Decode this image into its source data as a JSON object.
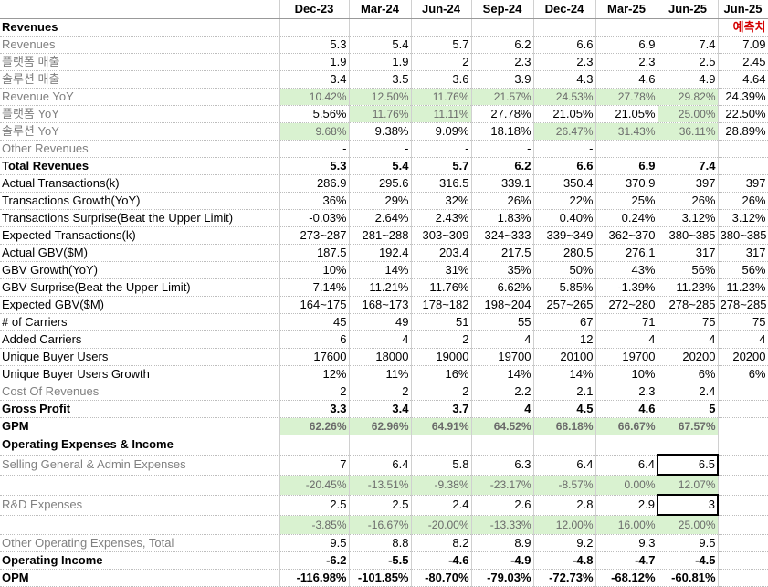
{
  "columns": [
    "Dec-23",
    "Mar-24",
    "Jun-24",
    "Sep-24",
    "Dec-24",
    "Mar-25",
    "Jun-25",
    "Jun-25"
  ],
  "forecast_label": "예측치",
  "rows": [
    {
      "label": "Revenues",
      "cells": [
        "",
        "",
        "",
        "",
        "",
        "",
        "",
        ""
      ]
    },
    {
      "label": "Revenues",
      "cells": [
        "5.3",
        "5.4",
        "5.7",
        "6.2",
        "6.6",
        "6.9",
        "7.4",
        "7.09"
      ]
    },
    {
      "label": "플랫폼 매출",
      "cells": [
        "1.9",
        "1.9",
        "2",
        "2.3",
        "2.3",
        "2.3",
        "2.5",
        "2.45"
      ]
    },
    {
      "label": "솔루션 매출",
      "cells": [
        "3.4",
        "3.5",
        "3.6",
        "3.9",
        "4.3",
        "4.6",
        "4.9",
        "4.64"
      ]
    },
    {
      "label": "Revenue YoY",
      "cells": [
        "10.42%",
        "12.50%",
        "11.76%",
        "21.57%",
        "24.53%",
        "27.78%",
        "29.82%",
        "24.39%"
      ]
    },
    {
      "label": "플랫폼 YoY",
      "cells": [
        "5.56%",
        "11.76%",
        "11.11%",
        "27.78%",
        "21.05%",
        "21.05%",
        "25.00%",
        "22.50%"
      ]
    },
    {
      "label": "솔루션 YoY",
      "cells": [
        "9.68%",
        "9.38%",
        "9.09%",
        "18.18%",
        "26.47%",
        "31.43%",
        "36.11%",
        "28.89%"
      ]
    },
    {
      "label": "Other Revenues",
      "cells": [
        "-",
        "-",
        "-",
        "-",
        "-",
        "",
        "",
        ""
      ]
    },
    {
      "label": "Total Revenues",
      "cells": [
        "5.3",
        "5.4",
        "5.7",
        "6.2",
        "6.6",
        "6.9",
        "7.4",
        ""
      ]
    },
    {
      "label": "Actual Transactions(k)",
      "cells": [
        "286.9",
        "295.6",
        "316.5",
        "339.1",
        "350.4",
        "370.9",
        "397",
        "397"
      ]
    },
    {
      "label": "Transactions Growth(YoY)",
      "cells": [
        "36%",
        "29%",
        "32%",
        "26%",
        "22%",
        "25%",
        "26%",
        "26%"
      ]
    },
    {
      "label": "Transactions Surprise(Beat the Upper Limit)",
      "cells": [
        "-0.03%",
        "2.64%",
        "2.43%",
        "1.83%",
        "0.40%",
        "0.24%",
        "3.12%",
        "3.12%"
      ]
    },
    {
      "label": "Expected Transactions(k)",
      "cells": [
        "273~287",
        "281~288",
        "303~309",
        "324~333",
        "339~349",
        "362~370",
        "380~385",
        "380~385"
      ]
    },
    {
      "label": "Actual GBV($M)",
      "cells": [
        "187.5",
        "192.4",
        "203.4",
        "217.5",
        "280.5",
        "276.1",
        "317",
        "317"
      ]
    },
    {
      "label": "GBV Growth(YoY)",
      "cells": [
        "10%",
        "14%",
        "31%",
        "35%",
        "50%",
        "43%",
        "56%",
        "56%"
      ]
    },
    {
      "label": "GBV Surprise(Beat the Upper Limit)",
      "cells": [
        "7.14%",
        "11.21%",
        "11.76%",
        "6.62%",
        "5.85%",
        "-1.39%",
        "11.23%",
        "11.23%"
      ]
    },
    {
      "label": "Expected GBV($M)",
      "cells": [
        "164~175",
        "168~173",
        "178~182",
        "198~204",
        "257~265",
        "272~280",
        "278~285",
        "278~285"
      ]
    },
    {
      "label": "# of Carriers",
      "cells": [
        "45",
        "49",
        "51",
        "55",
        "67",
        "71",
        "75",
        "75"
      ]
    },
    {
      "label": "Added Carriers",
      "cells": [
        "6",
        "4",
        "2",
        "4",
        "12",
        "4",
        "4",
        "4"
      ]
    },
    {
      "label": "Unique Buyer Users",
      "cells": [
        "17600",
        "18000",
        "19000",
        "19700",
        "20100",
        "19700",
        "20200",
        "20200"
      ]
    },
    {
      "label": "Unique Buyer Users Growth",
      "cells": [
        "12%",
        "11%",
        "16%",
        "14%",
        "14%",
        "10%",
        "6%",
        "6%"
      ]
    },
    {
      "label": "Cost Of Revenues",
      "cells": [
        "2",
        "2",
        "2",
        "2.2",
        "2.1",
        "2.3",
        "2.4",
        ""
      ]
    },
    {
      "label": "Gross Profit",
      "cells": [
        "3.3",
        "3.4",
        "3.7",
        "4",
        "4.5",
        "4.6",
        "5",
        ""
      ]
    },
    {
      "label": "GPM",
      "cells": [
        "62.26%",
        "62.96%",
        "64.91%",
        "64.52%",
        "68.18%",
        "66.67%",
        "67.57%",
        ""
      ]
    },
    {
      "label": "Operating Expenses & Income",
      "cells": [
        "",
        "",
        "",
        "",
        "",
        "",
        "",
        ""
      ]
    },
    {
      "label": "Selling General & Admin Expenses",
      "cells": [
        "7",
        "6.4",
        "5.8",
        "6.3",
        "6.4",
        "6.4",
        "6.5",
        ""
      ]
    },
    {
      "label": "",
      "cells": [
        "-20.45%",
        "-13.51%",
        "-9.38%",
        "-23.17%",
        "-8.57%",
        "0.00%",
        "12.07%",
        ""
      ]
    },
    {
      "label": "R&D Expenses",
      "cells": [
        "2.5",
        "2.5",
        "2.4",
        "2.6",
        "2.8",
        "2.9",
        "3",
        ""
      ]
    },
    {
      "label": "",
      "cells": [
        "-3.85%",
        "-16.67%",
        "-20.00%",
        "-13.33%",
        "12.00%",
        "16.00%",
        "25.00%",
        ""
      ]
    },
    {
      "label": "Other Operating Expenses, Total",
      "cells": [
        "9.5",
        "8.8",
        "8.2",
        "8.9",
        "9.2",
        "9.3",
        "9.5",
        ""
      ]
    },
    {
      "label": "Operating Income",
      "cells": [
        "-6.2",
        "-5.5",
        "-4.6",
        "-4.9",
        "-4.8",
        "-4.7",
        "-4.5",
        ""
      ]
    },
    {
      "label": "OPM",
      "cells": [
        "-116.98%",
        "-101.85%",
        "-80.70%",
        "-79.03%",
        "-72.73%",
        "-68.12%",
        "-60.81%",
        ""
      ]
    }
  ]
}
